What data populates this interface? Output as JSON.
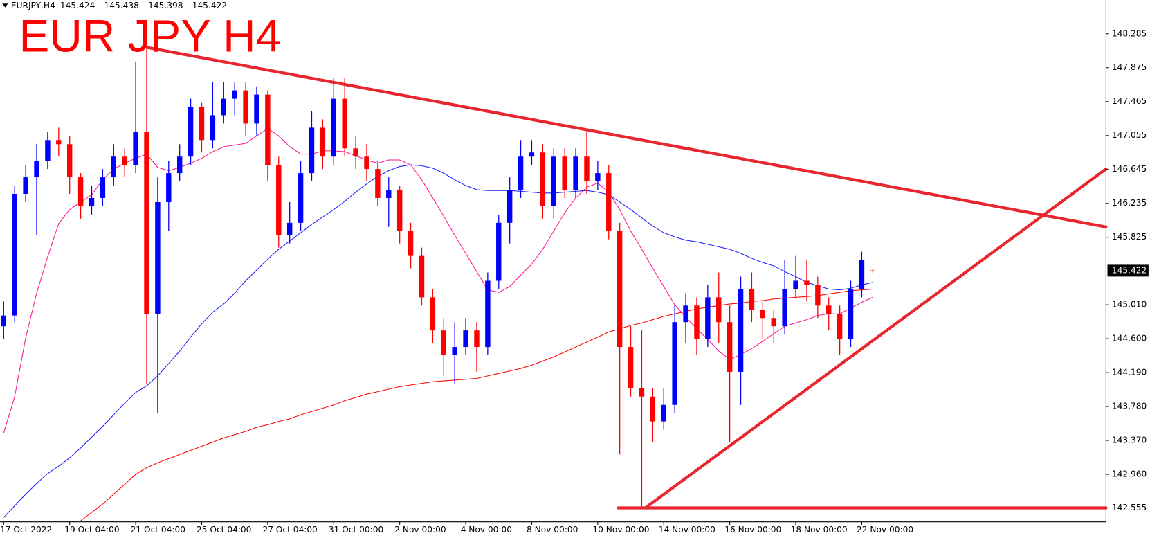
{
  "chart_data": {
    "type": "candlestick",
    "title": "EUR JPY H4",
    "symbol": "EURJPY,H4",
    "categories": [
      "17 Oct 2022",
      null,
      null,
      null,
      null,
      null,
      "19 Oct 04:00",
      null,
      null,
      null,
      null,
      null,
      "21 Oct 04:00",
      null,
      null,
      null,
      null,
      null,
      "25 Oct 04:00",
      null,
      null,
      null,
      null,
      null,
      "27 Oct 04:00",
      null,
      null,
      null,
      null,
      null,
      "31 Oct 00:00",
      null,
      null,
      null,
      null,
      null,
      "2 Nov 00:00",
      null,
      null,
      null,
      null,
      null,
      "4 Nov 00:00",
      null,
      null,
      null,
      null,
      null,
      "8 Nov 00:00",
      null,
      null,
      null,
      null,
      null,
      "10 Nov 00:00",
      null,
      null,
      null,
      null,
      null,
      "14 Nov 00:00",
      null,
      null,
      null,
      null,
      null,
      "16 Nov 00:00",
      null,
      null,
      null,
      null,
      null,
      "18 Nov 00:00",
      null,
      null,
      null,
      null,
      null,
      "22 Nov 00:00",
      null
    ],
    "open": [
      144.75,
      144.88,
      146.35,
      146.55,
      146.75,
      147.0,
      146.95,
      146.55,
      146.2,
      146.3,
      146.55,
      146.8,
      146.7,
      147.1,
      144.9,
      146.25,
      146.6,
      146.8,
      147.4,
      147.0,
      147.3,
      147.5,
      147.6,
      147.2,
      147.55,
      146.7,
      145.85,
      146.0,
      146.6,
      147.15,
      146.8,
      147.5,
      146.9,
      146.8,
      146.65,
      146.3,
      146.4,
      145.9,
      145.6,
      145.1,
      144.7,
      144.4,
      144.5,
      144.7,
      144.5,
      145.3,
      146.0,
      146.4,
      146.8,
      146.85,
      146.2,
      146.8,
      146.4,
      146.8,
      146.5,
      146.6,
      145.9,
      144.5,
      144.0,
      143.9,
      143.6,
      143.8,
      144.8,
      145.0,
      144.6,
      145.1,
      144.8,
      144.2,
      145.2,
      144.95,
      144.85,
      144.75,
      145.2,
      145.3,
      145.25,
      145.0,
      144.9,
      144.6,
      145.2,
      145.424
    ],
    "high": [
      145.05,
      146.45,
      146.7,
      146.95,
      147.1,
      147.15,
      147.05,
      146.6,
      146.45,
      146.65,
      146.95,
      146.9,
      147.95,
      148.1,
      146.55,
      146.75,
      146.95,
      147.5,
      147.45,
      147.7,
      147.7,
      147.7,
      147.7,
      147.65,
      147.6,
      146.8,
      146.25,
      146.75,
      147.35,
      147.25,
      147.75,
      147.75,
      147.05,
      146.95,
      146.75,
      146.55,
      146.45,
      146.0,
      145.7,
      145.2,
      144.85,
      144.8,
      144.85,
      144.8,
      145.4,
      146.1,
      146.55,
      147.0,
      147.0,
      146.95,
      146.9,
      146.9,
      146.9,
      147.1,
      146.75,
      146.7,
      146.0,
      144.75,
      144.7,
      144.0,
      144.0,
      145.0,
      145.15,
      145.1,
      145.25,
      145.4,
      145.0,
      145.35,
      145.4,
      145.05,
      144.95,
      145.55,
      145.6,
      145.55,
      145.35,
      145.1,
      145.0,
      145.3,
      145.65,
      145.438
    ],
    "low": [
      144.6,
      144.8,
      146.25,
      145.85,
      146.65,
      146.8,
      146.35,
      146.05,
      146.1,
      146.2,
      146.45,
      146.55,
      146.6,
      144.05,
      143.7,
      145.9,
      146.5,
      146.7,
      146.85,
      146.9,
      147.2,
      147.3,
      147.05,
      147.05,
      146.5,
      145.7,
      145.75,
      145.9,
      146.5,
      146.65,
      146.7,
      146.8,
      146.65,
      146.5,
      146.2,
      145.95,
      145.75,
      145.45,
      145.0,
      144.55,
      144.15,
      144.05,
      144.4,
      144.2,
      144.4,
      145.2,
      145.75,
      146.3,
      146.7,
      146.05,
      146.05,
      146.3,
      146.3,
      146.35,
      146.4,
      145.8,
      143.2,
      143.9,
      142.55,
      143.35,
      143.5,
      143.7,
      144.55,
      144.4,
      144.5,
      144.55,
      143.35,
      143.8,
      144.8,
      144.6,
      144.55,
      144.65,
      145.1,
      145.05,
      144.85,
      144.7,
      144.4,
      144.5,
      145.1,
      145.398
    ],
    "close": [
      144.88,
      146.35,
      146.55,
      146.75,
      147.0,
      146.95,
      146.55,
      146.2,
      146.3,
      146.55,
      146.8,
      146.7,
      147.1,
      144.9,
      146.25,
      146.6,
      146.8,
      147.4,
      147.0,
      147.3,
      147.5,
      147.6,
      147.2,
      147.55,
      146.7,
      145.85,
      146.0,
      146.6,
      147.15,
      146.8,
      147.5,
      146.9,
      146.8,
      146.65,
      146.3,
      146.4,
      145.9,
      145.6,
      145.1,
      144.7,
      144.4,
      144.5,
      144.7,
      144.5,
      145.3,
      146.0,
      146.4,
      146.8,
      146.85,
      146.2,
      146.8,
      146.4,
      146.8,
      146.5,
      146.6,
      145.9,
      144.5,
      144.0,
      143.9,
      143.6,
      143.8,
      144.8,
      145.0,
      144.6,
      145.1,
      144.8,
      144.2,
      145.2,
      144.95,
      144.85,
      144.75,
      145.2,
      145.3,
      145.25,
      145.0,
      144.9,
      144.6,
      145.2,
      145.55,
      145.422
    ],
    "up_color": "#0000ff",
    "down_color": "#ff0000",
    "series": [
      {
        "color": "#ff1493",
        "values": [
          143.46,
          143.9,
          144.61,
          145.15,
          145.59,
          145.99,
          146.16,
          146.25,
          146.34,
          146.52,
          146.65,
          146.72,
          146.78,
          146.83,
          146.67,
          146.63,
          146.67,
          146.72,
          146.78,
          146.86,
          146.92,
          146.94,
          146.96,
          147.05,
          147.14,
          147.05,
          146.92,
          146.83,
          146.83,
          146.87,
          146.87,
          146.86,
          146.81,
          146.76,
          146.72,
          146.76,
          146.76,
          146.7,
          146.52,
          146.3,
          146.08,
          145.85,
          145.63,
          145.41,
          145.19,
          145.16,
          145.23,
          145.37,
          145.5,
          145.68,
          145.9,
          146.12,
          146.3,
          146.43,
          146.48,
          146.37,
          146.16,
          145.9,
          145.68,
          145.45,
          145.23,
          145.01,
          144.86,
          144.72,
          144.59,
          144.45,
          144.35,
          144.41,
          144.48,
          144.57,
          144.66,
          144.75,
          144.79,
          144.83,
          144.88,
          144.9,
          144.9,
          144.97,
          145.04,
          145.1
        ]
      },
      {
        "color": "#1f1fff",
        "values": [
          142.44,
          142.58,
          142.72,
          142.85,
          142.97,
          143.06,
          143.16,
          143.28,
          143.41,
          143.54,
          143.68,
          143.82,
          143.95,
          144.03,
          144.15,
          144.3,
          144.45,
          144.62,
          144.78,
          144.92,
          145.02,
          145.15,
          145.3,
          145.43,
          145.56,
          145.68,
          145.78,
          145.88,
          145.98,
          146.07,
          146.16,
          146.26,
          146.37,
          146.47,
          146.56,
          146.63,
          146.68,
          146.7,
          146.69,
          146.66,
          146.6,
          146.52,
          146.45,
          146.4,
          146.39,
          146.39,
          146.39,
          146.38,
          146.37,
          146.36,
          146.36,
          146.37,
          146.38,
          146.39,
          146.37,
          146.34,
          146.25,
          146.16,
          146.06,
          145.96,
          145.88,
          145.83,
          145.79,
          145.77,
          145.74,
          145.71,
          145.68,
          145.63,
          145.57,
          145.52,
          145.48,
          145.41,
          145.35,
          145.28,
          145.24,
          145.2,
          145.19,
          145.21,
          145.25,
          145.28
        ]
      },
      {
        "color": "#ff0000",
        "values": [
          null,
          null,
          null,
          null,
          null,
          null,
          null,
          142.4,
          142.5,
          142.6,
          142.72,
          142.84,
          142.96,
          143.04,
          143.1,
          143.15,
          143.2,
          143.25,
          143.3,
          143.35,
          143.4,
          143.44,
          143.48,
          143.53,
          143.56,
          143.6,
          143.63,
          143.68,
          143.72,
          143.76,
          143.8,
          143.85,
          143.89,
          143.93,
          143.96,
          143.99,
          144.02,
          144.04,
          144.06,
          144.08,
          144.09,
          144.1,
          144.11,
          144.12,
          144.15,
          144.18,
          144.21,
          144.24,
          144.28,
          144.33,
          144.38,
          144.44,
          144.5,
          144.56,
          144.62,
          144.68,
          144.72,
          144.76,
          144.79,
          144.83,
          144.87,
          144.9,
          144.93,
          144.96,
          144.98,
          145.0,
          145.02,
          145.03,
          145.05,
          145.06,
          145.08,
          145.09,
          145.1,
          145.11,
          145.12,
          145.14,
          145.16,
          145.18,
          145.19,
          145.2
        ]
      }
    ],
    "trendlines": [
      {
        "color": "#e8262d",
        "x": [
          13,
          100.2
        ],
        "values": [
          148.12,
          145.95
        ]
      },
      {
        "color": "#e8262d",
        "x": [
          58.33,
          100.2
        ],
        "values": [
          142.555,
          146.65
        ]
      },
      {
        "color": "#e8262d",
        "x": [
          55.87,
          100.2
        ],
        "values": [
          142.555,
          142.555
        ]
      }
    ],
    "ylim": [
      142.386,
      148.693
    ],
    "yticks": [
      148.285,
      147.875,
      147.465,
      147.055,
      146.645,
      146.235,
      145.825,
      {
        "value": 145.01,
        "label": "145.010"
      },
      {
        "value": 144.6,
        "label": "144.600"
      },
      {
        "value": 144.19,
        "label": "144.190"
      },
      {
        "value": 143.78,
        "label": "143.780"
      },
      {
        "value": 143.37,
        "label": "143.370"
      },
      {
        "value": 142.96,
        "label": "142.960"
      },
      142.555
    ]
  }
}
